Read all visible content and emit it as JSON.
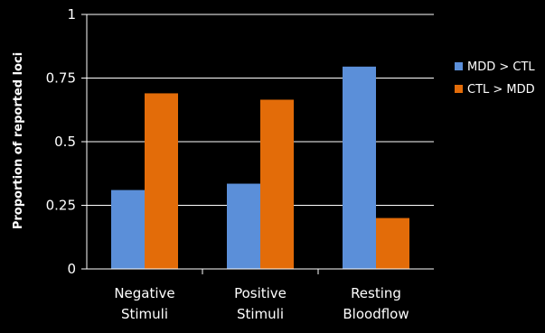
{
  "chart_data": {
    "type": "bar",
    "categories": [
      [
        "Negative",
        "Stimuli"
      ],
      [
        "Positive",
        "Stimuli"
      ],
      [
        "Resting",
        "Bloodflow"
      ]
    ],
    "series": [
      {
        "name": "MDD > CTL",
        "color": "#5b8fd9",
        "values": [
          0.31,
          0.335,
          0.795
        ]
      },
      {
        "name": "CTL > MDD",
        "color": "#e36c09",
        "values": [
          0.69,
          0.665,
          0.2
        ]
      }
    ],
    "yticks": [
      "0",
      "0.25",
      "0.5",
      "0.75",
      "1"
    ],
    "ytick_values": [
      0,
      0.25,
      0.5,
      0.75,
      1
    ],
    "ylabel": "Proportion of reported loci",
    "xlabel": "",
    "title": "",
    "ylim": [
      0,
      1
    ],
    "grid": true,
    "legend_position": "right",
    "background": "#000000",
    "gridline_color": "#ffffff"
  }
}
